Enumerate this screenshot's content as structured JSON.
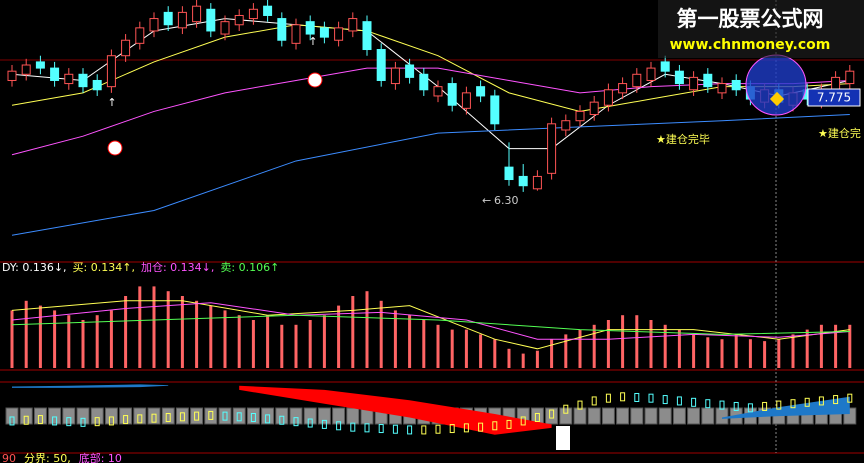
{
  "watermark": {
    "title": "第一股票公式网",
    "url": "www.chnmoney.com"
  },
  "chart_data": [
    {
      "type": "candlestick",
      "ylim": [
        5.2,
        9.4
      ],
      "open": [
        8.1,
        8.2,
        8.4,
        8.3,
        8.05,
        8.2,
        8.1,
        8.0,
        8.5,
        8.7,
        8.9,
        9.2,
        8.95,
        9.05,
        9.25,
        8.85,
        9.0,
        9.1,
        9.3,
        9.1,
        8.7,
        9.05,
        8.95,
        8.75,
        8.9,
        9.05,
        8.6,
        8.05,
        8.35,
        8.2,
        7.85,
        8.05,
        7.65,
        8.0,
        7.85,
        6.7,
        6.55,
        6.35,
        6.6,
        7.3,
        7.45,
        7.55,
        7.7,
        7.9,
        8.0,
        8.1,
        8.4,
        8.25,
        7.95,
        8.2,
        7.9,
        8.1,
        8.0,
        7.75,
        7.95,
        7.7,
        7.95,
        7.75,
        7.9,
        8.05
      ],
      "high": [
        8.35,
        8.45,
        8.5,
        8.4,
        8.3,
        8.3,
        8.2,
        8.6,
        8.85,
        9.05,
        9.2,
        9.3,
        9.3,
        9.4,
        9.35,
        9.15,
        9.25,
        9.35,
        9.4,
        9.2,
        9.1,
        9.15,
        9.05,
        9.05,
        9.2,
        9.15,
        8.7,
        8.4,
        8.45,
        8.3,
        8.1,
        8.15,
        8.0,
        8.1,
        7.95,
        7.1,
        6.75,
        6.65,
        7.5,
        7.55,
        7.7,
        7.85,
        8.05,
        8.15,
        8.3,
        8.4,
        8.5,
        8.35,
        8.25,
        8.3,
        8.15,
        8.2,
        8.1,
        8.05,
        8.05,
        8.0,
        8.05,
        8.05,
        8.25,
        8.35
      ],
      "low": [
        8.0,
        8.1,
        8.2,
        8.0,
        7.95,
        7.9,
        7.85,
        7.9,
        8.4,
        8.6,
        8.8,
        8.9,
        8.85,
        8.95,
        8.8,
        8.75,
        8.9,
        9.0,
        9.05,
        8.65,
        8.6,
        8.75,
        8.7,
        8.65,
        8.8,
        8.5,
        8.0,
        7.95,
        8.05,
        7.85,
        7.75,
        7.6,
        7.55,
        7.75,
        7.3,
        6.4,
        6.3,
        6.32,
        6.5,
        7.2,
        7.35,
        7.45,
        7.6,
        7.8,
        7.9,
        8.0,
        8.15,
        7.95,
        7.85,
        7.9,
        7.8,
        7.85,
        7.7,
        7.65,
        7.65,
        7.6,
        7.7,
        7.65,
        7.8,
        7.95
      ],
      "close": [
        8.25,
        8.35,
        8.3,
        8.1,
        8.2,
        8.0,
        7.95,
        8.5,
        8.75,
        8.95,
        9.1,
        9.0,
        9.2,
        9.3,
        8.9,
        9.05,
        9.15,
        9.25,
        9.15,
        8.75,
        9.0,
        8.85,
        8.8,
        8.95,
        9.1,
        8.6,
        8.1,
        8.3,
        8.15,
        7.95,
        8.0,
        7.7,
        7.9,
        7.85,
        7.4,
        6.5,
        6.4,
        6.55,
        7.4,
        7.45,
        7.6,
        7.75,
        7.95,
        8.05,
        8.2,
        8.3,
        8.25,
        8.05,
        8.15,
        8.0,
        8.05,
        7.95,
        7.8,
        7.95,
        7.75,
        7.9,
        7.8,
        7.95,
        8.15,
        8.25
      ],
      "up_color": "#ff5454",
      "down_color": "#54ffff",
      "overlays": [
        {
          "color": "#ffffff",
          "x": [
            0,
            5,
            10,
            15,
            20,
            25,
            30,
            35,
            38,
            42,
            46,
            50,
            54,
            59
          ],
          "values": [
            8.2,
            8.1,
            8.9,
            9.1,
            9.0,
            8.9,
            8.0,
            7.0,
            7.0,
            7.7,
            8.2,
            8.05,
            7.85,
            8.1
          ]
        },
        {
          "color": "#ffff54",
          "x": [
            0,
            5,
            10,
            15,
            20,
            25,
            30,
            35,
            40,
            45,
            50,
            55,
            59
          ],
          "values": [
            7.7,
            7.9,
            8.4,
            8.8,
            9.0,
            8.9,
            8.5,
            7.9,
            7.6,
            7.8,
            8.0,
            8.0,
            8.05
          ]
        },
        {
          "color": "#ff54ff",
          "x": [
            0,
            5,
            10,
            15,
            20,
            25,
            30,
            35,
            40,
            45,
            50,
            55,
            59
          ],
          "values": [
            6.9,
            7.2,
            7.6,
            7.9,
            8.1,
            8.3,
            8.3,
            8.1,
            7.9,
            8.0,
            8.05,
            8.05,
            8.1
          ]
        },
        {
          "color": "#3c8cff",
          "x": [
            0,
            10,
            20,
            30,
            40,
            50,
            59
          ],
          "values": [
            5.6,
            6.0,
            6.8,
            7.25,
            7.35,
            7.45,
            7.55
          ]
        }
      ],
      "low_label": "6.30",
      "last_price": "7.775",
      "signals": [
        "★建仓完毕",
        "★建仓完"
      ]
    },
    {
      "type": "bar",
      "ylim": [
        0,
        1
      ],
      "color": "#ff6464",
      "legend": [
        {
          "text": "DY: 0.136↓,",
          "color": "#ffffff"
        },
        {
          "text": "买: 0.134↑,",
          "color": "#ffff54"
        },
        {
          "text": "加仓: 0.134↓,",
          "color": "#ff54ff"
        },
        {
          "text": "卖: 0.106↑",
          "color": "#54ff54"
        }
      ],
      "values": [
        0.6,
        0.7,
        0.65,
        0.6,
        0.55,
        0.5,
        0.55,
        0.6,
        0.75,
        0.85,
        0.85,
        0.8,
        0.75,
        0.7,
        0.65,
        0.6,
        0.55,
        0.5,
        0.55,
        0.45,
        0.45,
        0.5,
        0.55,
        0.65,
        0.75,
        0.8,
        0.7,
        0.6,
        0.55,
        0.5,
        0.45,
        0.4,
        0.4,
        0.35,
        0.3,
        0.2,
        0.15,
        0.18,
        0.3,
        0.35,
        0.4,
        0.45,
        0.5,
        0.55,
        0.55,
        0.5,
        0.45,
        0.4,
        0.35,
        0.32,
        0.3,
        0.35,
        0.3,
        0.28,
        0.3,
        0.35,
        0.4,
        0.45,
        0.45,
        0.45
      ],
      "lines": [
        {
          "color": "#ffff54",
          "x": [
            0,
            8,
            12,
            18,
            24,
            28,
            34,
            37,
            42,
            48,
            54,
            59
          ],
          "values": [
            0.6,
            0.7,
            0.7,
            0.55,
            0.6,
            0.65,
            0.3,
            0.2,
            0.4,
            0.4,
            0.3,
            0.4
          ]
        },
        {
          "color": "#ff54ff",
          "x": [
            0,
            8,
            14,
            20,
            26,
            32,
            37,
            42,
            48,
            54,
            59
          ],
          "values": [
            0.5,
            0.62,
            0.68,
            0.55,
            0.58,
            0.5,
            0.3,
            0.3,
            0.35,
            0.32,
            0.38
          ]
        },
        {
          "color": "#54ff54",
          "x": [
            0,
            10,
            20,
            30,
            40,
            50,
            59
          ],
          "values": [
            0.45,
            0.5,
            0.55,
            0.5,
            0.4,
            0.35,
            0.38
          ]
        }
      ]
    },
    {
      "type": "band",
      "ylim": [
        0,
        100
      ],
      "dots": [
        45,
        46,
        47,
        45,
        44,
        43,
        44,
        45,
        47,
        48,
        49,
        50,
        51,
        52,
        53,
        52,
        51,
        50,
        48,
        46,
        44,
        42,
        40,
        38,
        36,
        35,
        34,
        33,
        32,
        32,
        33,
        34,
        35,
        36,
        38,
        40,
        45,
        50,
        55,
        62,
        68,
        74,
        78,
        80,
        79,
        78,
        76,
        74,
        72,
        70,
        68,
        66,
        64,
        66,
        68,
        70,
        72,
        74,
        76,
        78
      ],
      "areas": [
        {
          "color": "#ff0000",
          "x": [
            16,
            22,
            28,
            34,
            38
          ],
          "upper": [
            96,
            90,
            75,
            55,
            40
          ],
          "lower": [
            90,
            70,
            50,
            25,
            35
          ]
        },
        {
          "color": "#1e78c8",
          "x": [
            50,
            54,
            59
          ],
          "upper": [
            50,
            65,
            80
          ],
          "lower": [
            48,
            52,
            55
          ]
        },
        {
          "color": "#1e78c8",
          "x": [
            0,
            4,
            9,
            11
          ],
          "upper": [
            95,
            96,
            98,
            97
          ],
          "lower": [
            93,
            93,
            94,
            96
          ]
        }
      ],
      "footer": [
        {
          "text": "90",
          "color": "#ff5454"
        },
        {
          "text": "分界: 50,",
          "color": "#ffff54"
        },
        {
          "text": "底部: 10",
          "color": "#ff54ff"
        }
      ]
    }
  ]
}
